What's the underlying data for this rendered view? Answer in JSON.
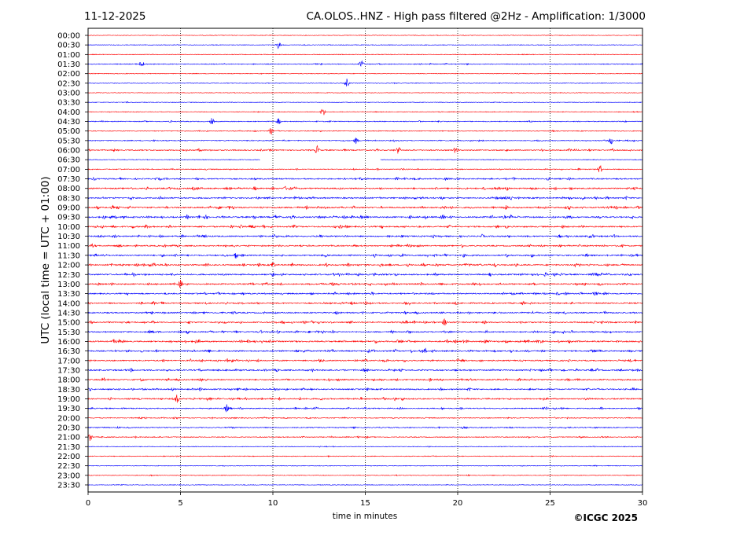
{
  "header": {
    "date": "11-12-2025",
    "title": "CA.OLOS..HNZ - High pass filtered @2Hz - Amplification: 1/3000"
  },
  "footer": {
    "copyright": "©ICGC 2025"
  },
  "colors": {
    "red_trace": "#ff0000",
    "blue_trace": "#0000ff",
    "grid": "#000000",
    "frame": "#000000"
  },
  "chart_data": {
    "type": "line",
    "title": "CA.OLOS..HNZ - High pass filtered @2Hz - Amplification: 1/3000",
    "xlabel": "time in minutes",
    "ylabel": "UTC (local time = UTC + 01:00)",
    "xlim": [
      0,
      30
    ],
    "x_ticks": [
      0,
      5,
      10,
      15,
      20,
      25,
      30
    ],
    "grid": "vertical dotted lines at 5-minute intervals",
    "row_labels": [
      "00:00",
      "00:30",
      "01:00",
      "01:30",
      "02:00",
      "02:30",
      "03:00",
      "03:30",
      "04:00",
      "04:30",
      "05:00",
      "05:30",
      "06:00",
      "06:30",
      "07:00",
      "07:30",
      "08:00",
      "08:30",
      "09:00",
      "09:30",
      "10:00",
      "10:30",
      "11:00",
      "11:30",
      "12:00",
      "12:30",
      "13:00",
      "13:30",
      "14:00",
      "14:30",
      "15:00",
      "15:30",
      "16:00",
      "16:30",
      "17:00",
      "17:30",
      "18:00",
      "18:30",
      "19:00",
      "19:30",
      "20:00",
      "20:30",
      "21:00",
      "21:30",
      "22:00",
      "22:30",
      "23:00",
      "23:30"
    ],
    "row_colors": [
      "red",
      "blue",
      "red",
      "blue",
      "red",
      "blue",
      "red",
      "blue",
      "red",
      "blue",
      "red",
      "blue",
      "red",
      "blue",
      "red",
      "blue",
      "red",
      "blue",
      "red",
      "blue",
      "red",
      "blue",
      "red",
      "blue",
      "red",
      "blue",
      "red",
      "blue",
      "red",
      "blue",
      "red",
      "blue",
      "red",
      "blue",
      "red",
      "blue",
      "red",
      "blue",
      "red",
      "blue",
      "red",
      "blue",
      "red",
      "blue",
      "red",
      "blue",
      "red",
      "blue"
    ],
    "activity_level": [
      0.05,
      0.08,
      0.05,
      0.25,
      0.05,
      0.06,
      0.04,
      0.05,
      0.12,
      0.3,
      0.18,
      0.4,
      0.55,
      0.08,
      0.35,
      0.7,
      0.85,
      0.8,
      0.9,
      0.95,
      0.9,
      0.85,
      0.75,
      0.85,
      0.9,
      0.9,
      0.85,
      0.75,
      0.75,
      0.7,
      0.75,
      0.75,
      0.85,
      0.8,
      0.75,
      0.8,
      0.8,
      0.75,
      0.8,
      0.55,
      0.35,
      0.4,
      0.3,
      0.1,
      0.12,
      0.08,
      0.08,
      0.06
    ],
    "data_gaps": [
      {
        "row": "06:30",
        "start_minute": 9.3,
        "end_minute": 15.8
      }
    ],
    "notable_events": [
      {
        "row": "00:30",
        "minute": 10.3
      },
      {
        "row": "01:30",
        "minute": 2.9
      },
      {
        "row": "01:30",
        "minute": 14.8
      },
      {
        "row": "02:30",
        "minute": 14.0
      },
      {
        "row": "04:00",
        "minute": 12.7
      },
      {
        "row": "04:30",
        "minute": 6.7
      },
      {
        "row": "04:30",
        "minute": 10.3
      },
      {
        "row": "05:00",
        "minute": 9.9
      },
      {
        "row": "05:30",
        "minute": 14.5
      },
      {
        "row": "05:30",
        "minute": 28.3
      },
      {
        "row": "06:00",
        "minute": 12.4
      },
      {
        "row": "06:00",
        "minute": 16.8
      },
      {
        "row": "06:00",
        "minute": 19.9
      },
      {
        "row": "07:00",
        "minute": 27.7
      },
      {
        "row": "11:30",
        "minute": 8.0
      },
      {
        "row": "12:00",
        "minute": 10.0
      },
      {
        "row": "13:00",
        "minute": 5.0
      },
      {
        "row": "15:00",
        "minute": 19.3
      },
      {
        "row": "16:30",
        "minute": 18.2
      },
      {
        "row": "19:00",
        "minute": 4.8
      },
      {
        "row": "19:30",
        "minute": 7.5
      },
      {
        "row": "21:00",
        "minute": 0.1
      }
    ]
  }
}
